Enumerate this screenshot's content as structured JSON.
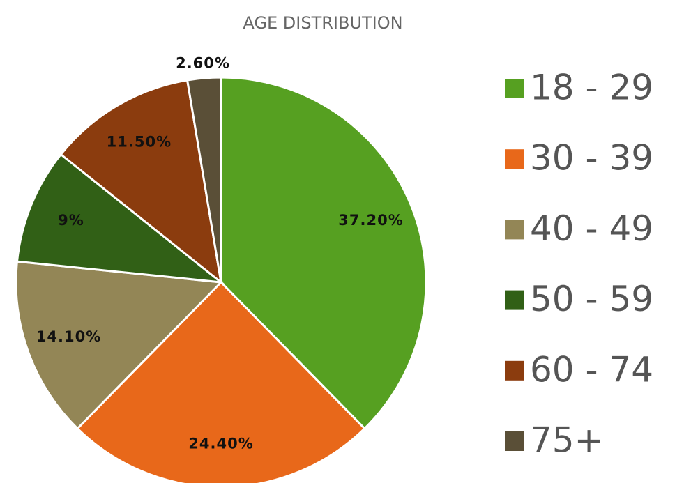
{
  "chart_data": {
    "type": "pie",
    "title": "AGE DISTRIBUTION",
    "categories": [
      "18 - 29",
      "30 - 39",
      "40 - 49",
      "50 - 59",
      "60 - 74",
      "75+"
    ],
    "values": [
      37.2,
      24.4,
      14.1,
      9,
      11.5,
      2.6
    ],
    "value_labels": [
      "37.20%",
      "24.40%",
      "14.10%",
      "9%",
      "11.50%",
      "2.60%"
    ],
    "colors": [
      "#56a021",
      "#e8681a",
      "#938656",
      "#316016",
      "#8b3c0e",
      "#5a4f37"
    ],
    "legend": "right"
  }
}
